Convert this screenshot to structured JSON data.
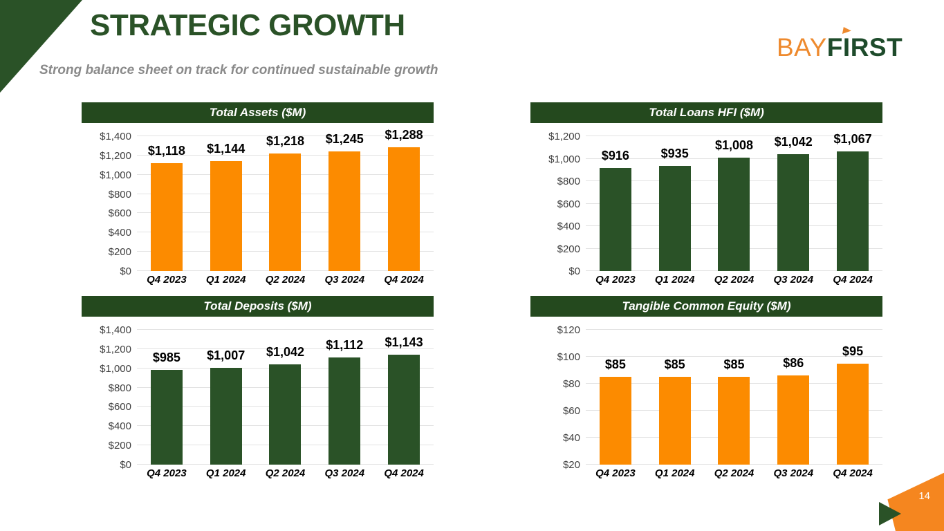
{
  "slide": {
    "title": "STRATEGIC GROWTH",
    "subtitle": "Strong balance sheet on track for continued sustainable growth",
    "page_number": "14",
    "logo": {
      "bay": "BAY",
      "first_f": "F",
      "first_i": "I",
      "first_rst": "RST"
    }
  },
  "colors": {
    "dark_green": "#2A5227",
    "header_green": "#24491E",
    "bar_orange": "#FC8B00",
    "bar_green": "#2A5227",
    "logo_orange": "#EE8A2E",
    "corner_orange": "#F5861F",
    "subtitle_gray": "#8a8a8a",
    "gridline_gray": "#e2e2e2"
  },
  "chart_data": [
    {
      "type": "bar",
      "title": "Total Assets  ($M)",
      "categories": [
        "Q4 2023",
        "Q1 2024",
        "Q2 2024",
        "Q3 2024",
        "Q4 2024"
      ],
      "values": [
        1118,
        1144,
        1218,
        1245,
        1288
      ],
      "value_labels": [
        "$1,118",
        "$1,144",
        "$1,218",
        "$1,245",
        "$1,288"
      ],
      "ylim": [
        0,
        1400
      ],
      "ytick_step": 200,
      "yticks": [
        "$0",
        "$200",
        "$400",
        "$600",
        "$800",
        "$1,000",
        "$1,200",
        "$1,400"
      ],
      "bar_color": "#FC8B00",
      "grid": true,
      "legend": "none"
    },
    {
      "type": "bar",
      "title": "Total Loans HFI ($M)",
      "categories": [
        "Q4 2023",
        "Q1 2024",
        "Q2 2024",
        "Q3 2024",
        "Q4 2024"
      ],
      "values": [
        916,
        935,
        1008,
        1042,
        1067
      ],
      "value_labels": [
        "$916",
        "$935",
        "$1,008",
        "$1,042",
        "$1,067"
      ],
      "ylim": [
        0,
        1200
      ],
      "ytick_step": 200,
      "yticks": [
        "$0",
        "$200",
        "$400",
        "$600",
        "$800",
        "$1,000",
        "$1,200"
      ],
      "bar_color": "#2A5227",
      "grid": true,
      "legend": "none"
    },
    {
      "type": "bar",
      "title": "Total Deposits ($M)",
      "categories": [
        "Q4 2023",
        "Q1 2024",
        "Q2 2024",
        "Q3 2024",
        "Q4 2024"
      ],
      "values": [
        985,
        1007,
        1042,
        1112,
        1143
      ],
      "value_labels": [
        "$985",
        "$1,007",
        "$1,042",
        "$1,112",
        "$1,143"
      ],
      "ylim": [
        0,
        1400
      ],
      "ytick_step": 200,
      "yticks": [
        "$0",
        "$200",
        "$400",
        "$600",
        "$800",
        "$1,000",
        "$1,200",
        "$1,400"
      ],
      "bar_color": "#2A5227",
      "grid": true,
      "legend": "none"
    },
    {
      "type": "bar",
      "title": "Tangible Common Equity ($M)",
      "categories": [
        "Q4 2023",
        "Q1 2024",
        "Q2 2024",
        "Q3 2024",
        "Q4 2024"
      ],
      "values": [
        85,
        85,
        85,
        86,
        95
      ],
      "value_labels": [
        "$85",
        "$85",
        "$85",
        "$86",
        "$95"
      ],
      "ylim": [
        20,
        120
      ],
      "ytick_step": 20,
      "yticks": [
        "$20",
        "$40",
        "$60",
        "$80",
        "$100",
        "$120"
      ],
      "bar_color": "#FC8B00",
      "grid": true,
      "legend": "none"
    }
  ]
}
